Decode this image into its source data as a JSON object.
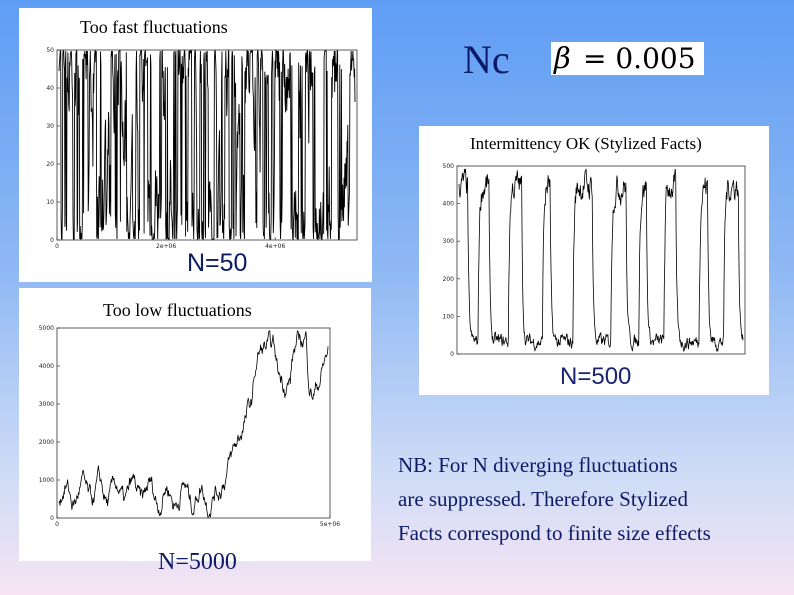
{
  "header": {
    "nc_label": "Nc",
    "beta_symbol": "β",
    "beta_equals": "= 0.005"
  },
  "panels": {
    "top_left": {
      "title": "Too fast fluctuations",
      "n_label": "N=50"
    },
    "right": {
      "title": "Intermittency OK (Stylized Facts)",
      "n_label": "N=500"
    },
    "bottom_left": {
      "title": "Too low fluctuations",
      "n_label": "N=5000"
    }
  },
  "note": {
    "line1": "NB: For N diverging fluctuations",
    "line2": "are suppressed. Therefore Stylized",
    "line3": "Facts correspond to finite size effects"
  },
  "chart_data": [
    {
      "type": "line",
      "name": "N=50",
      "ylim": [
        0,
        50
      ],
      "yticks": [
        "0",
        "10",
        "20",
        "30",
        "40",
        "50"
      ],
      "xticks": [
        "0",
        "2e+06",
        "4e+06"
      ],
      "xtick_values": [
        0,
        2000000,
        4000000
      ],
      "xlim": [
        0,
        5500000
      ],
      "pattern": "fast",
      "grid": false
    },
    {
      "type": "line",
      "name": "N=500",
      "ylim": [
        0,
        500
      ],
      "yticks": [
        "0",
        "100",
        "200",
        "300",
        "400",
        "500"
      ],
      "xticks": [],
      "xlim": [
        0,
        1
      ],
      "pattern": "intermittent",
      "grid": false
    },
    {
      "type": "line",
      "name": "N=5000",
      "ylim": [
        0,
        5000
      ],
      "yticks": [
        "0",
        "1000",
        "2000",
        "3000",
        "4000",
        "5000"
      ],
      "xticks": [
        "0",
        "5e+06"
      ],
      "xtick_values": [
        0,
        5000000
      ],
      "xlim": [
        0,
        5000000
      ],
      "pattern": "slow",
      "grid": false
    }
  ]
}
